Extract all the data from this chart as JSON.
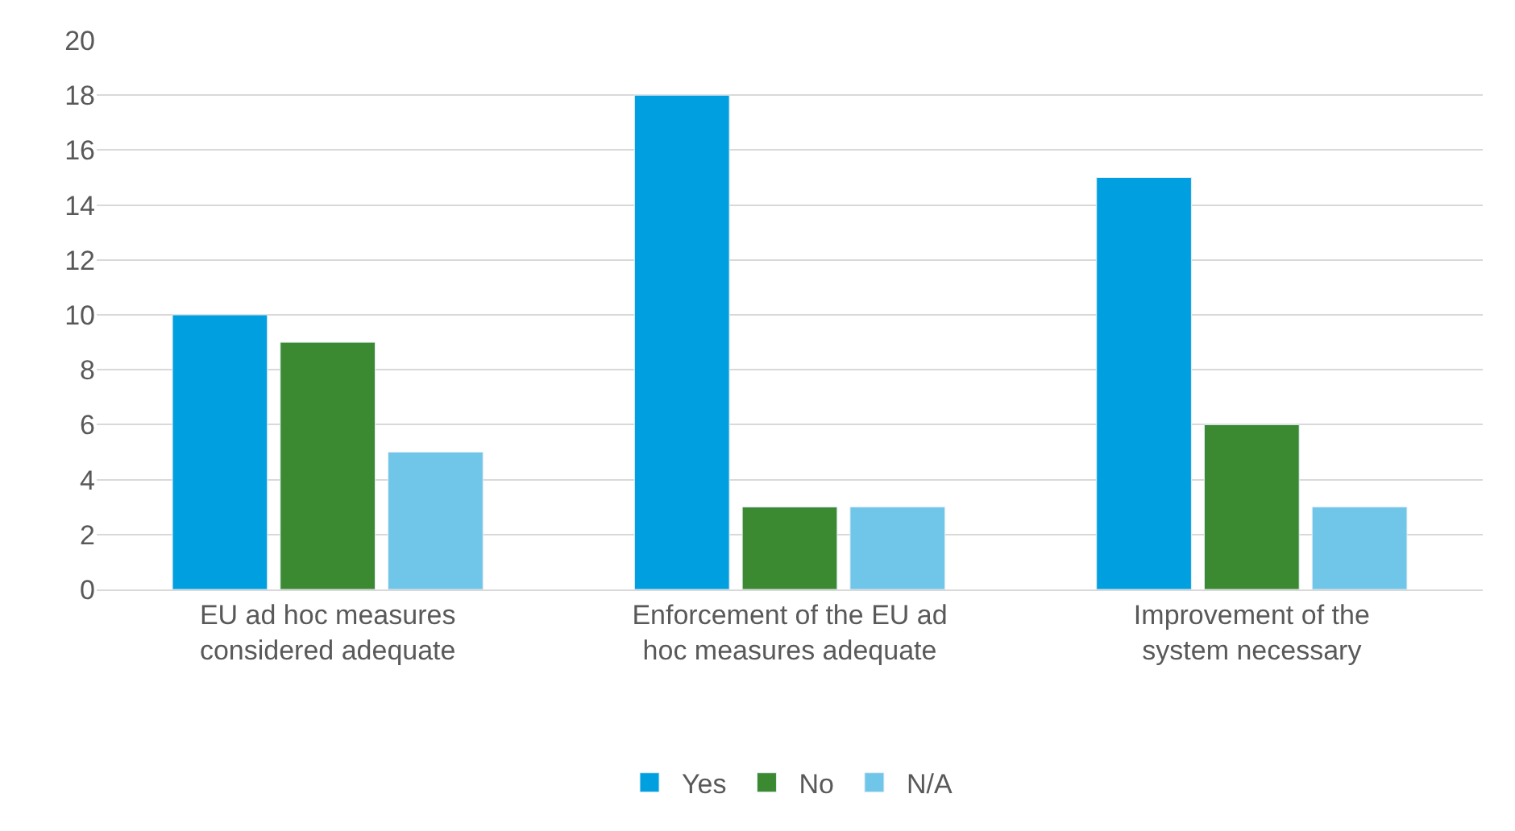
{
  "chart_data": {
    "type": "bar",
    "categories": [
      "EU ad hoc measures considered adequate",
      "Enforcement of the EU ad hoc measures adequate",
      "Improvement of the system necessary"
    ],
    "series": [
      {
        "name": "Yes",
        "color": "#00a0e0",
        "values": [
          10,
          18,
          15
        ]
      },
      {
        "name": "No",
        "color": "#3b8a32",
        "values": [
          9,
          3,
          6
        ]
      },
      {
        "name": "N/A",
        "color": "#70c6e8",
        "values": [
          5,
          3,
          3
        ]
      }
    ],
    "ylim": [
      0,
      20
    ],
    "yticks": [
      0,
      2,
      4,
      6,
      8,
      10,
      12,
      14,
      16,
      18,
      20
    ],
    "grid": "y",
    "legend": "bottom"
  }
}
